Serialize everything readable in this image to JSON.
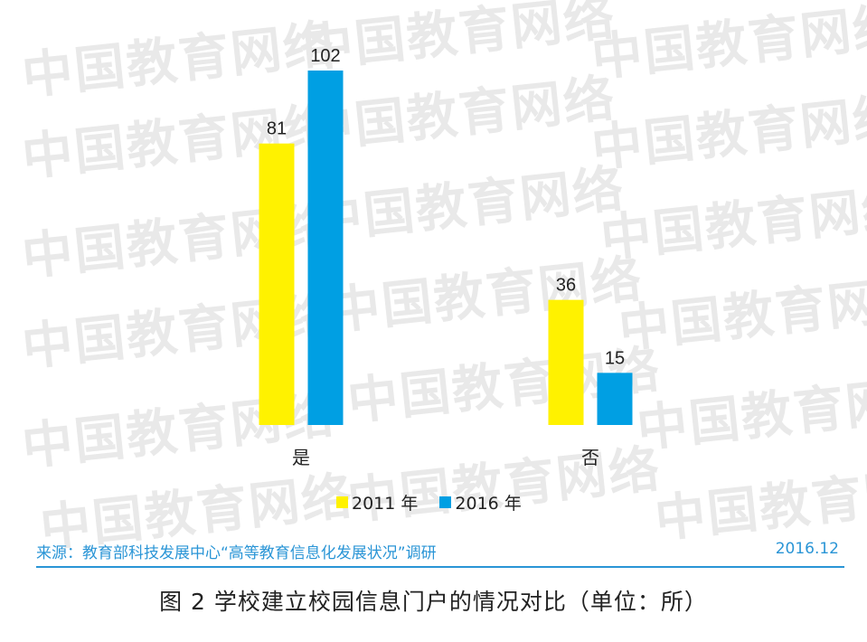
{
  "colors": {
    "series_2011": "#fff200",
    "series_2016": "#009fe3",
    "source_text": "#2a95d6",
    "watermark": "#e9e9e9"
  },
  "watermark_text": "中国教育网络",
  "chart_data": {
    "type": "bar",
    "categories": [
      "是",
      "否"
    ],
    "series": [
      {
        "name": "2011 年",
        "values": [
          81,
          36
        ],
        "color": "#fff200"
      },
      {
        "name": "2016 年",
        "values": [
          102,
          15
        ],
        "color": "#009fe3"
      }
    ],
    "ylim": [
      0,
      102
    ],
    "grid": false,
    "legend_position": "bottom",
    "data_labels": true
  },
  "legend": {
    "item_2011": "2011 年",
    "item_2016": "2016 年"
  },
  "source": {
    "label": "来源：教育部科技发展中心“高等教育信息化发展状况”调研",
    "date": "2016.12"
  },
  "caption": "图 2  学校建立校园信息门户的情况对比（单位：所）"
}
